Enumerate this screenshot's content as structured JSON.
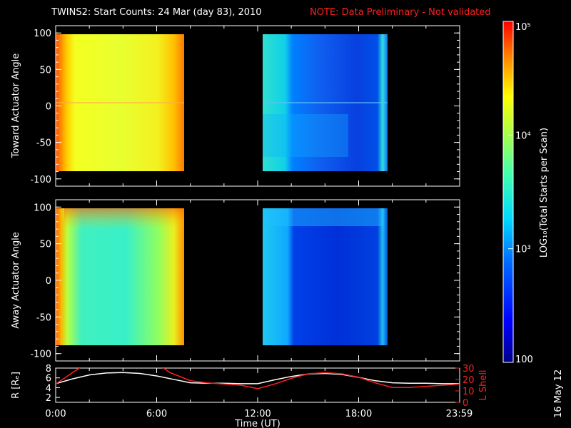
{
  "header": {
    "title": "TWINS2: Start Counts: 24 Mar (day  83), 2010",
    "note": "NOTE: Data Preliminary - Not validated"
  },
  "stamp": "16 May 12",
  "colorbar": {
    "label": "LOG₁₀(Total Starts per Scan)",
    "ticks": [
      "10⁵",
      "10⁴",
      "10³",
      "100"
    ],
    "tick_values": [
      100000,
      10000,
      1000,
      100
    ]
  },
  "chart_data": [
    {
      "type": "heatmap",
      "title": "",
      "ylabel": "Toward Actuator Angle",
      "xlabel": "",
      "ylim": [
        -110,
        110
      ],
      "yticks": [
        "100",
        "50",
        "0",
        "-50",
        "-100"
      ],
      "ytick_values": [
        100,
        50,
        0,
        -50,
        -100
      ],
      "xlim": [
        0,
        24
      ],
      "data_gaps_hours": [
        [
          7.6,
          12.1
        ],
        [
          19.7,
          24
        ]
      ],
      "blocks": [
        {
          "t_start": 0.0,
          "t_end": 7.6,
          "angle_range": [
            -88,
            90
          ],
          "level": "high (~1e4)"
        },
        {
          "t_start": 12.1,
          "t_end": 19.7,
          "angle_range": [
            -88,
            90
          ],
          "level": "low (~3e2-1e3)"
        }
      ]
    },
    {
      "type": "heatmap",
      "title": "",
      "ylabel": "Away Actuator Angle",
      "xlabel": "",
      "ylim": [
        -110,
        110
      ],
      "yticks": [
        "100",
        "50",
        "0",
        "-50",
        "-100"
      ],
      "ytick_values": [
        100,
        50,
        0,
        -50,
        -100
      ],
      "xlim": [
        0,
        24
      ],
      "data_gaps_hours": [
        [
          7.6,
          12.1
        ],
        [
          19.7,
          24
        ]
      ],
      "blocks": [
        {
          "t_start": 0.0,
          "t_end": 7.6,
          "angle_range": [
            -88,
            90
          ],
          "level": "medium (~2e3-5e3)"
        },
        {
          "t_start": 12.1,
          "t_end": 19.7,
          "angle_range": [
            -88,
            90
          ],
          "level": "low (~2e2-1e3)"
        }
      ]
    },
    {
      "type": "line",
      "title": "",
      "xlabel": "Time (UT)",
      "ylabel": "R [Rₑ]",
      "ylabel_right": "L Shell",
      "xticks": [
        "0:00",
        "6:00",
        "12:00",
        "18:00",
        "23:59"
      ],
      "xtick_values": [
        0,
        6,
        12,
        18,
        23.98
      ],
      "ylim": [
        1,
        8
      ],
      "yticks": [
        "8",
        "6",
        "4",
        "2"
      ],
      "ylim_right": [
        0,
        30
      ],
      "yticks_right": [
        "30",
        "20",
        "10",
        "0"
      ],
      "series": [
        {
          "axis": "left",
          "color": "#ffffff",
          "x": [
            0,
            1,
            2,
            3,
            4,
            5,
            6,
            7,
            8,
            9,
            10,
            11,
            12,
            13,
            14,
            15,
            16,
            17,
            18,
            19,
            20,
            21,
            22,
            23,
            24
          ],
          "y": [
            4.8,
            5.8,
            6.6,
            7.0,
            7.1,
            6.9,
            6.4,
            5.7,
            5.0,
            4.9,
            4.9,
            4.8,
            4.8,
            5.6,
            6.3,
            6.8,
            6.9,
            6.7,
            6.1,
            5.4,
            5.0,
            4.9,
            4.9,
            4.8,
            4.8
          ]
        },
        {
          "axis": "right",
          "color": "#ff2020",
          "x": [
            0,
            1,
            1.5,
            6.3,
            6.8,
            8,
            9,
            10,
            11,
            12,
            13,
            14,
            15,
            16,
            17,
            18,
            19,
            20,
            21,
            22,
            23,
            24
          ],
          "y": [
            16,
            26,
            31,
            31,
            26,
            19,
            17,
            16,
            15,
            12,
            16,
            21,
            25,
            26,
            25,
            22,
            17,
            13,
            13,
            14,
            15,
            16
          ]
        }
      ]
    }
  ]
}
